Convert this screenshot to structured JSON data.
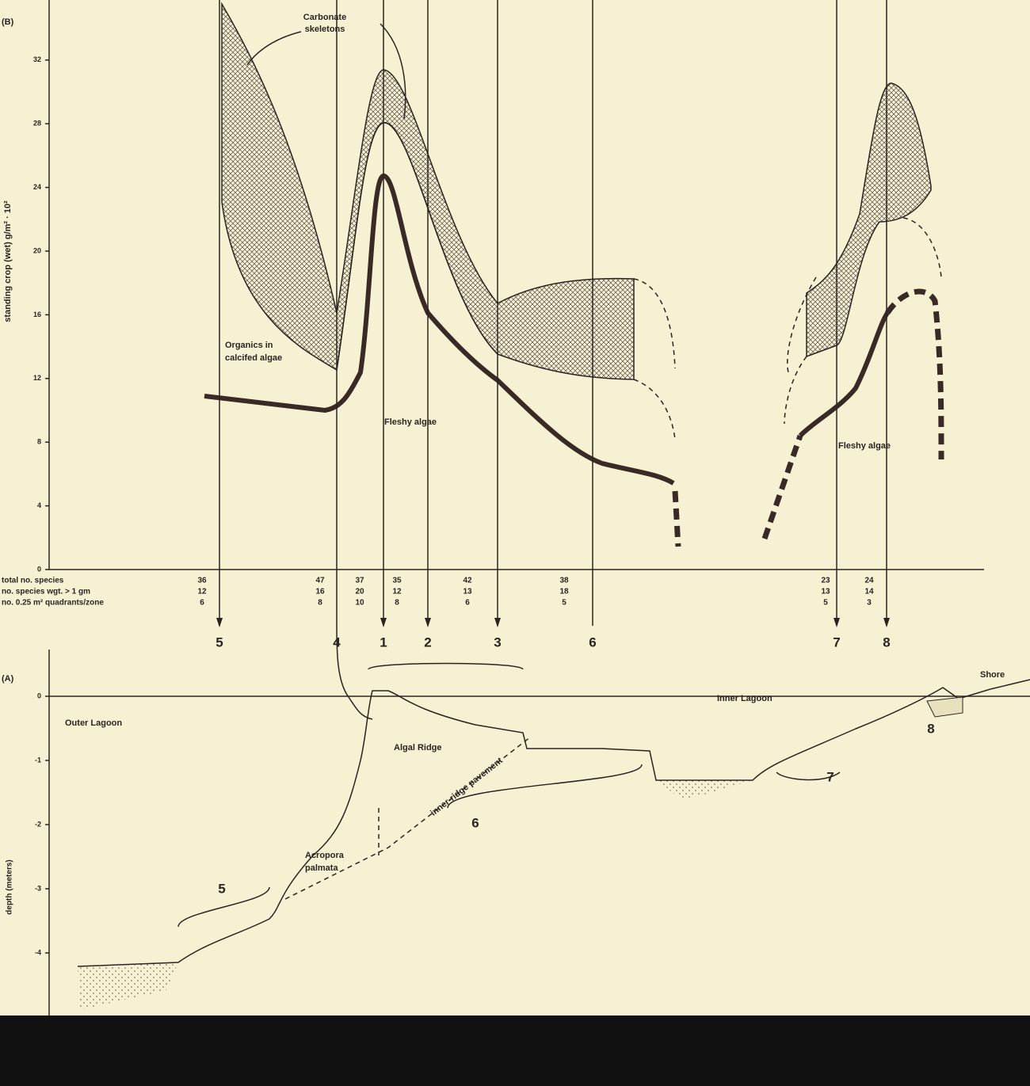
{
  "panel_b": {
    "label": "(B)",
    "y_axis_title": "standing crop (wet)   g/m² · 10²",
    "yticks": [
      0,
      4,
      8,
      12,
      16,
      20,
      24,
      28,
      32
    ],
    "carbonate_label": [
      "Carbonate",
      "skeletons"
    ],
    "organics_label": [
      "Organics in",
      "calcifed algae"
    ],
    "fleshy_label_left": "Fleshy algae",
    "fleshy_label_right": "Fleshy algae"
  },
  "table": {
    "row_labels": [
      "total no. species",
      "no. species wgt. > 1 gm",
      "no. 0.25 m² quadrants/zone"
    ],
    "columns": [
      {
        "zone": 5,
        "values": [
          36,
          12,
          6
        ]
      },
      {
        "zone": 4,
        "values": [
          47,
          16,
          8
        ]
      },
      {
        "zone": 1,
        "values": [
          37,
          20,
          10
        ]
      },
      {
        "zone": 2,
        "values": [
          35,
          12,
          8
        ]
      },
      {
        "zone": 3,
        "values": [
          42,
          13,
          6
        ]
      },
      {
        "zone": 6,
        "values": [
          38,
          18,
          5
        ]
      },
      {
        "zone": 7,
        "values": [
          23,
          13,
          5
        ]
      },
      {
        "zone": 8,
        "values": [
          24,
          14,
          3
        ]
      }
    ]
  },
  "panel_a": {
    "label": "(A)",
    "y_axis_title": "depth (meters)",
    "yticks": [
      0,
      -1,
      -2,
      -3,
      -4
    ],
    "outer_lagoon": "Outer Lagoon",
    "algal_ridge": "Algal Ridge",
    "pavement": "inner-ridge pavement",
    "acropora": [
      "Acropora",
      "palmata"
    ],
    "inner_lagoon": "Inner Lagoon",
    "shore": "Shore",
    "zones": [
      5,
      6,
      7,
      8
    ]
  }
}
